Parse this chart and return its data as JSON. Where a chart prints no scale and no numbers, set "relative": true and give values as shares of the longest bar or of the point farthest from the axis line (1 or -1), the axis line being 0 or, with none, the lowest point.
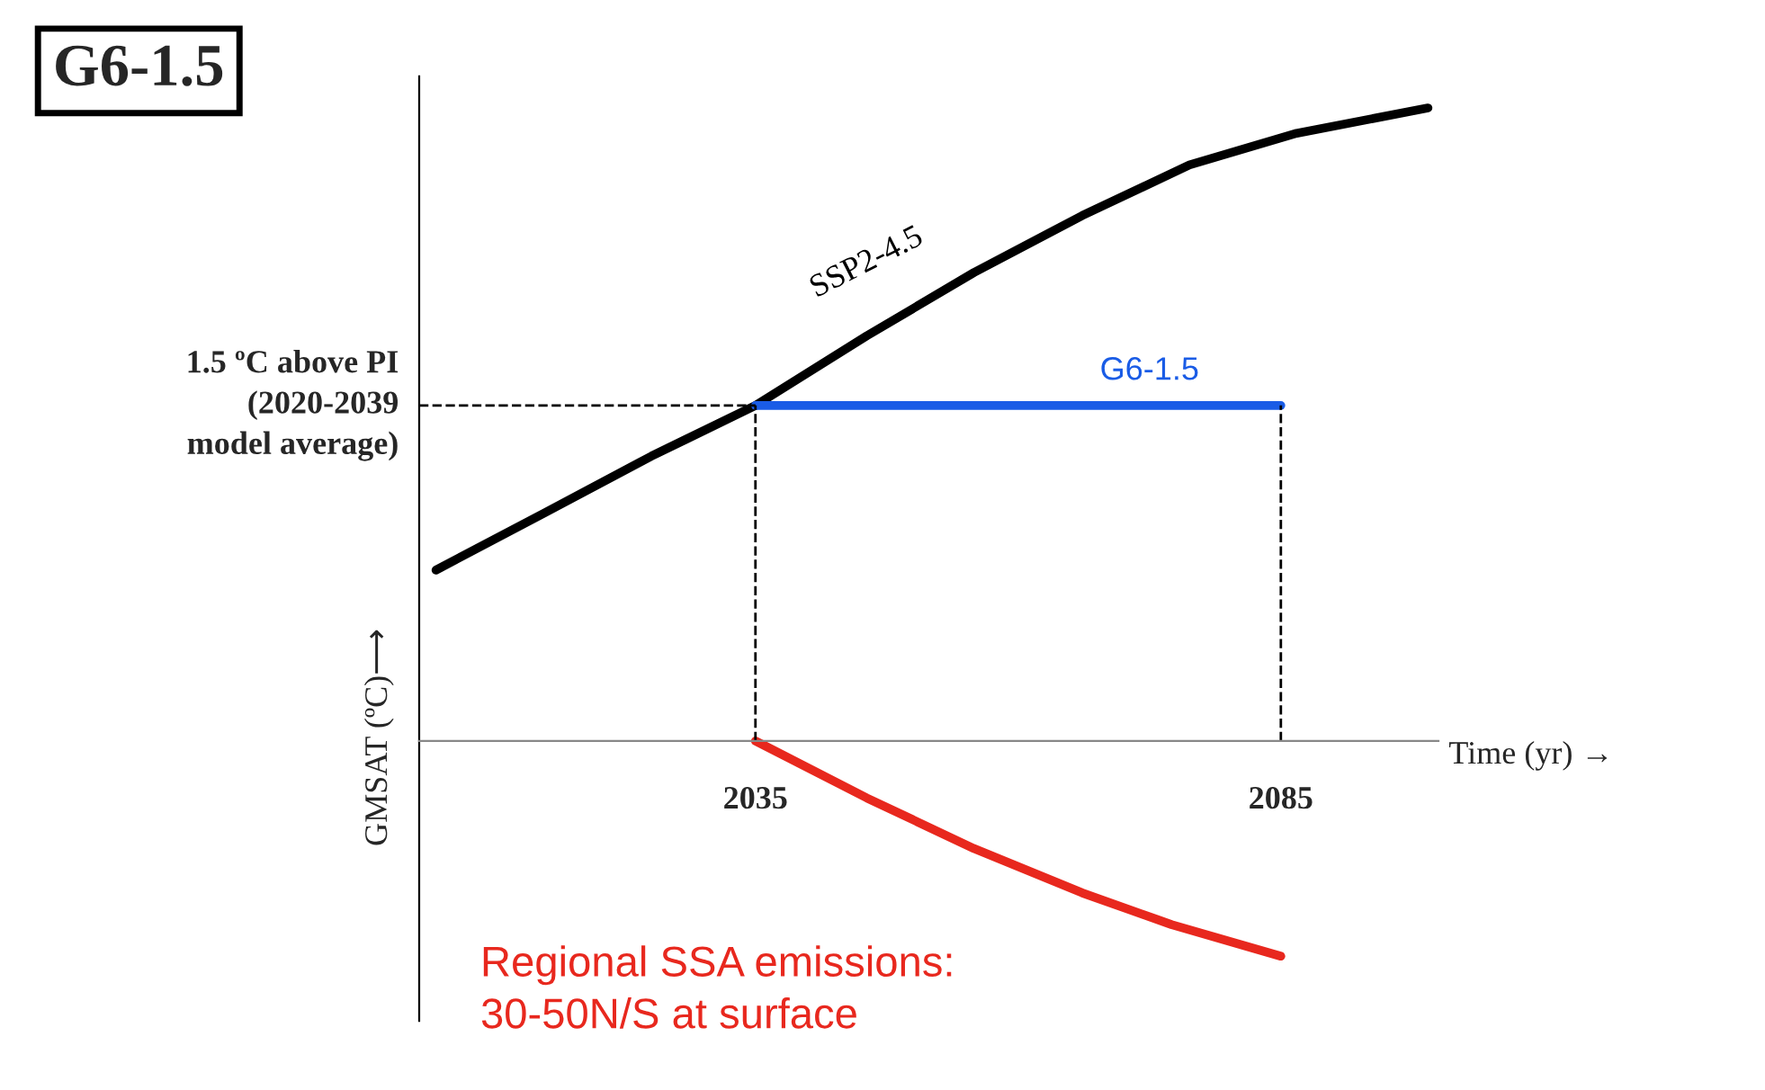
{
  "chart_data": {
    "type": "line",
    "title": "G6-1.5",
    "xlabel": "Time (yr) →",
    "ylabel": "GMSAT (ºC)⟶",
    "relative": true,
    "xlim": [
      2003,
      2100
    ],
    "xticks": [
      2035,
      2085
    ],
    "grid": false,
    "legend": false,
    "marker": "none",
    "line_style": "solid",
    "series": [
      {
        "name": "SSP2-4.5",
        "color": "#000000",
        "x": [
          2004.6,
          2014.9,
          2025.1,
          2035,
          2045.6,
          2055.8,
          2066.1,
          2076.3,
          2086.5,
          2099
        ],
        "values": [
          0.27,
          0.36,
          0.45,
          0.53,
          0.64,
          0.74,
          0.83,
          0.91,
          0.96,
          1.0
        ]
      },
      {
        "name": "G6-1.5",
        "color": "#1a5ce6",
        "x": [
          2035,
          2085
        ],
        "values": [
          0.53,
          0.53
        ]
      },
      {
        "name": "Regional SSA emissions:\n30-50N/S at surface",
        "color": "#e8281e",
        "x": [
          2035,
          2045.6,
          2055.8,
          2066.1,
          2074.6,
          2085
        ],
        "values": [
          0,
          -0.09,
          -0.17,
          -0.24,
          -0.29,
          -0.34
        ]
      }
    ],
    "ref_lines": [
      {
        "axis": "y",
        "value": 0.53,
        "label": "1.5 ºC above PI\n(2020-2039\nmodel average)",
        "line_style": "dashed",
        "color": "#000000"
      },
      {
        "axis": "x",
        "value": 2035,
        "label": null,
        "line_style": "dashed",
        "color": "#000000"
      },
      {
        "axis": "x",
        "value": 2085,
        "label": null,
        "line_style": "dashed",
        "color": "#000000"
      }
    ]
  }
}
